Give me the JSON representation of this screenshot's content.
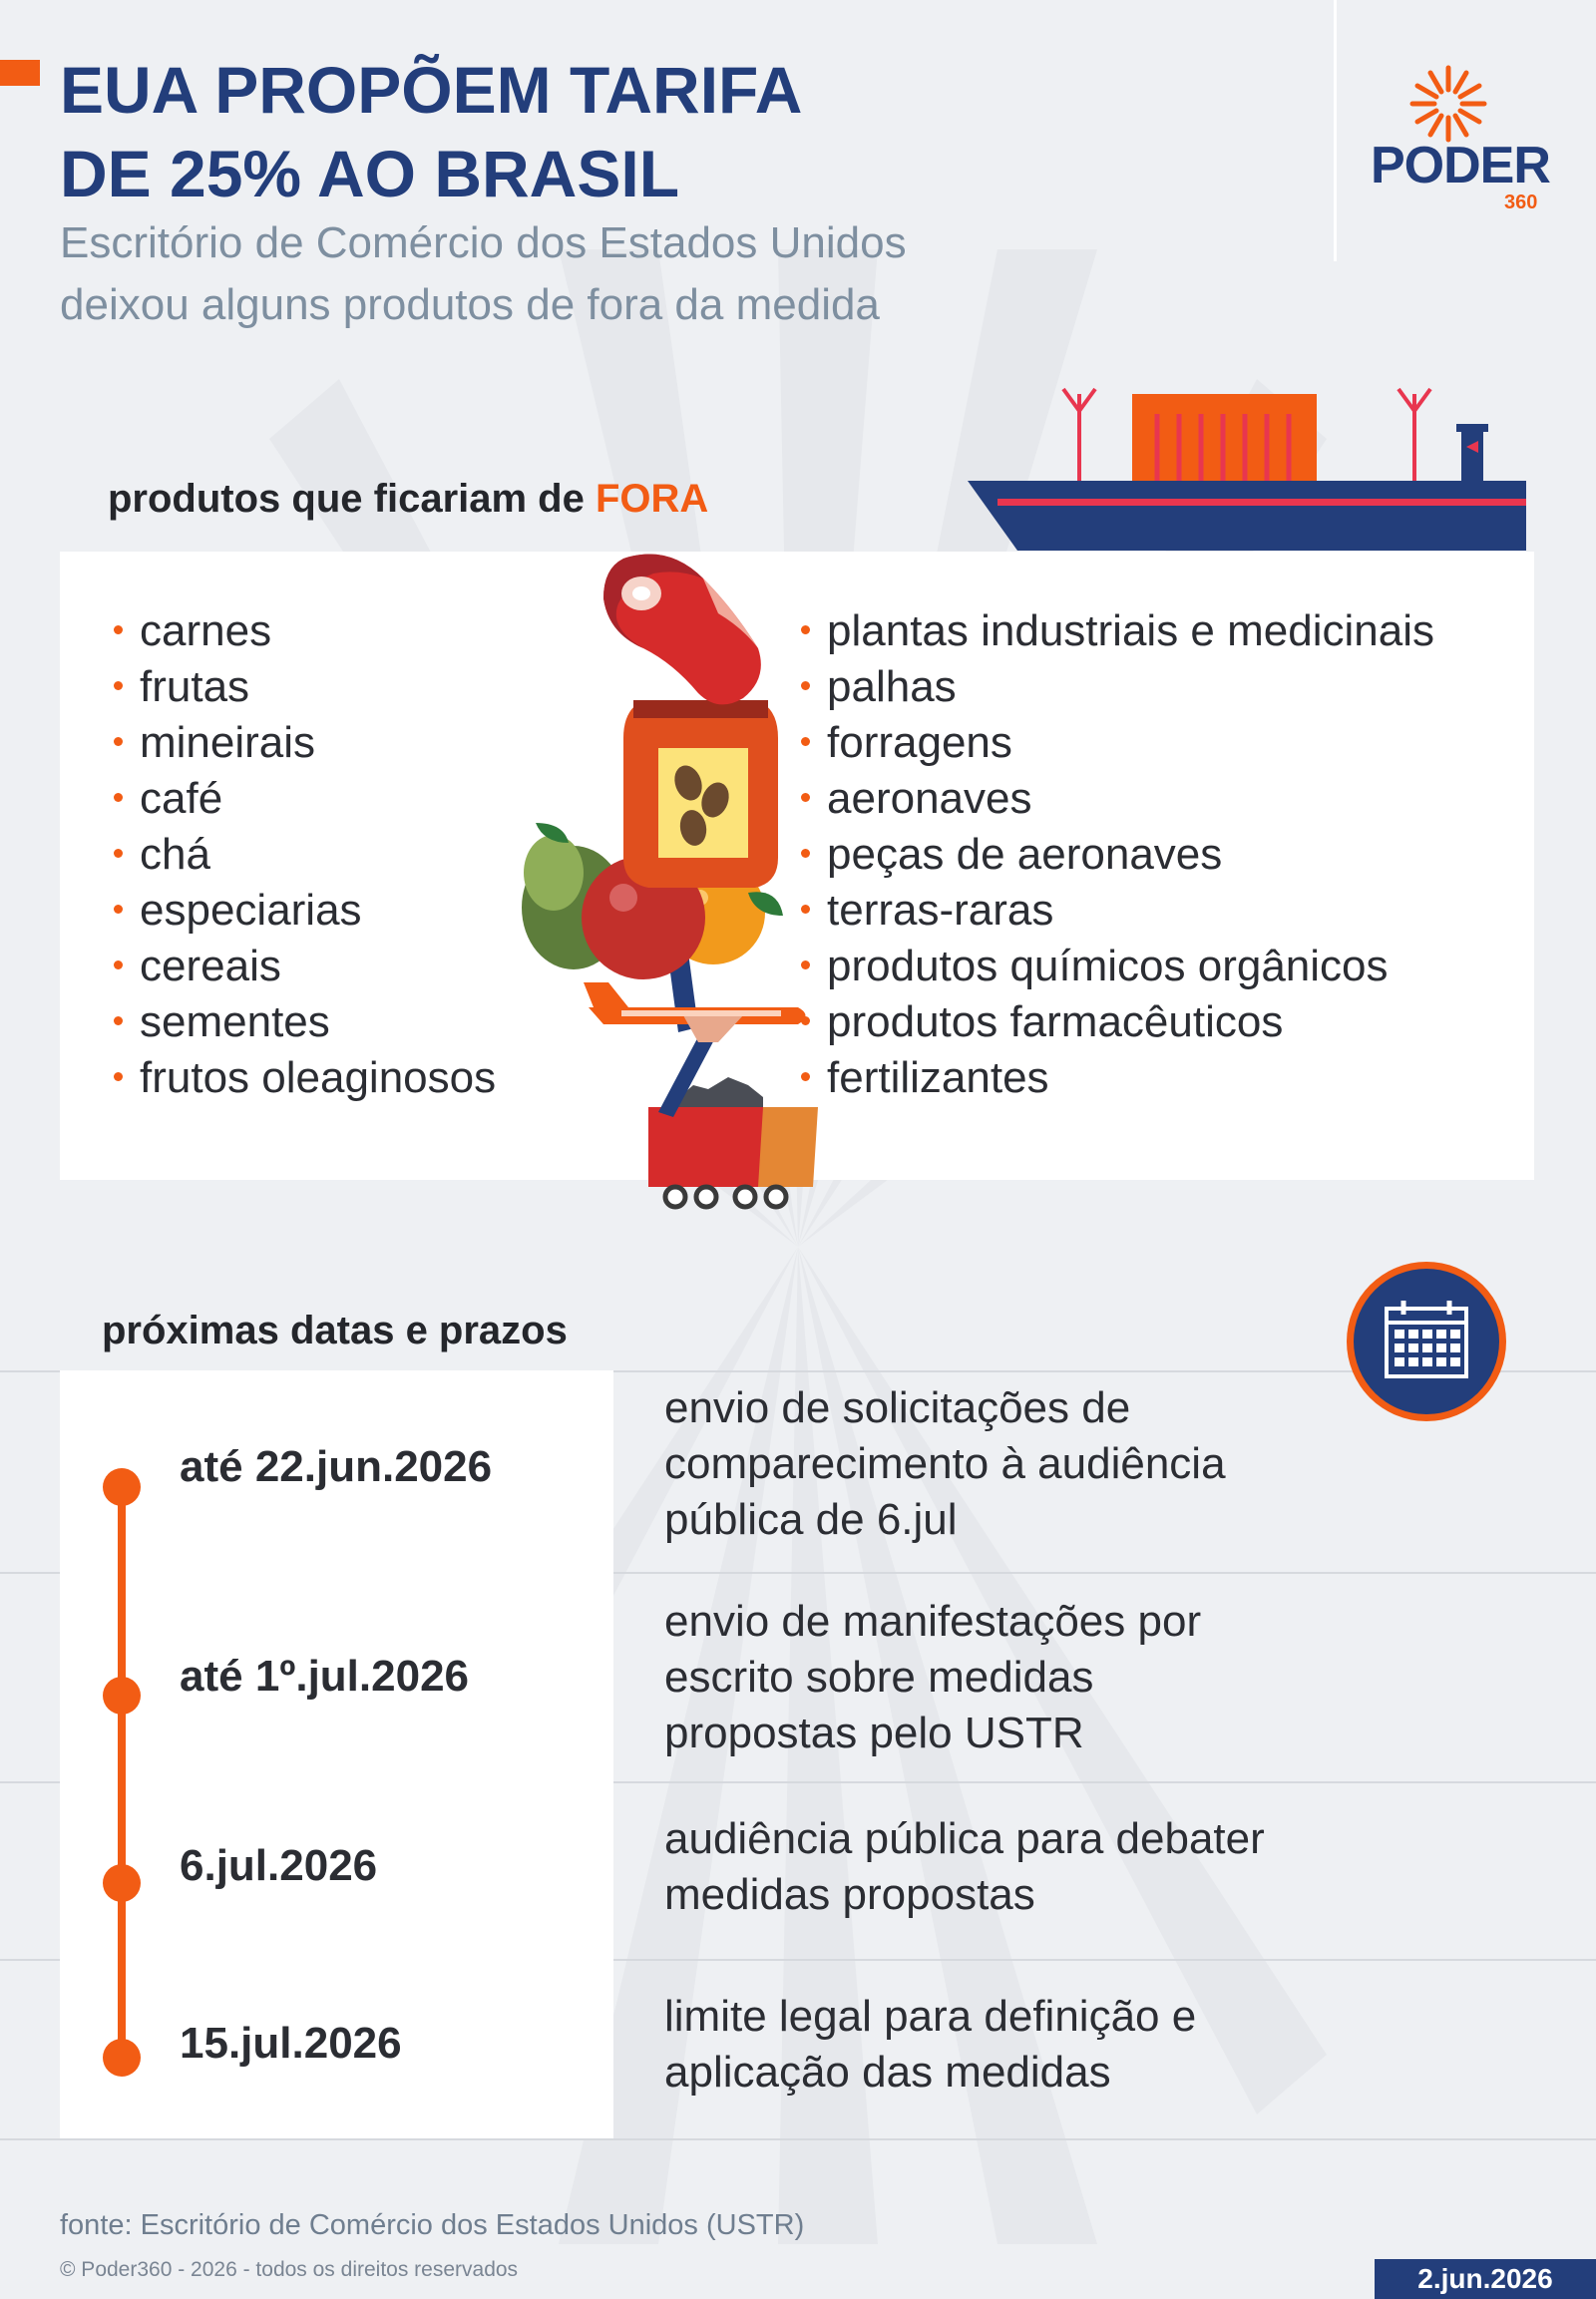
{
  "header": {
    "title_line1": "EUA PROPÕEM TARIFA",
    "title_line2": "DE 25% AO BRASIL",
    "subtitle_line1": "Escritório de Comércio dos Estados Unidos",
    "subtitle_line2": "deixou alguns produtos de fora da medida"
  },
  "logo": {
    "name": "PODER",
    "suffix": "360"
  },
  "products": {
    "title_prefix": "produtos que ficariam de ",
    "title_highlight": "FORA",
    "left": [
      "carnes",
      "frutas",
      "mineirais",
      "café",
      "chá",
      "especiarias",
      "cereais",
      "sementes",
      "frutos oleaginosos"
    ],
    "right": [
      "plantas industriais e medicinais",
      "palhas",
      "forragens",
      "aeronaves",
      "peças de aeronaves",
      "terras-raras",
      "produtos químicos orgânicos",
      "produtos farmacêuticos",
      "fertilizantes"
    ]
  },
  "timeline": {
    "title": "próximas datas e prazos",
    "items": [
      {
        "date": "até 22.jun.2026",
        "desc_lines": [
          "envio de solicitações de",
          "comparecimento à audiência",
          "pública de 6.jul"
        ]
      },
      {
        "date": "até 1º.jul.2026",
        "desc_lines": [
          "envio de manifestações por",
          "escrito sobre medidas",
          "propostas pelo USTR"
        ]
      },
      {
        "date": "6.jul.2026",
        "desc_lines": [
          "audiência pública para debater",
          "medidas propostas"
        ]
      },
      {
        "date": "15.jul.2026",
        "desc_lines": [
          "limite legal para definição e",
          "aplicação das medidas"
        ]
      }
    ]
  },
  "footer": {
    "source": "fonte: Escritório de Comércio dos Estados Unidos (USTR)",
    "copyright": "© Poder360 - 2026 - todos os direitos reservados",
    "date": "2.jun.2026"
  },
  "icons": [
    "sun-logo-icon",
    "cargo-ship-icon",
    "meat-icon",
    "coffee-bag-icon",
    "fruits-icon",
    "airplane-icon",
    "mine-cart-icon",
    "calendar-icon"
  ],
  "colors": {
    "accent": "#f25c14",
    "brand_blue": "#233e7b",
    "background": "#eef0f3"
  }
}
